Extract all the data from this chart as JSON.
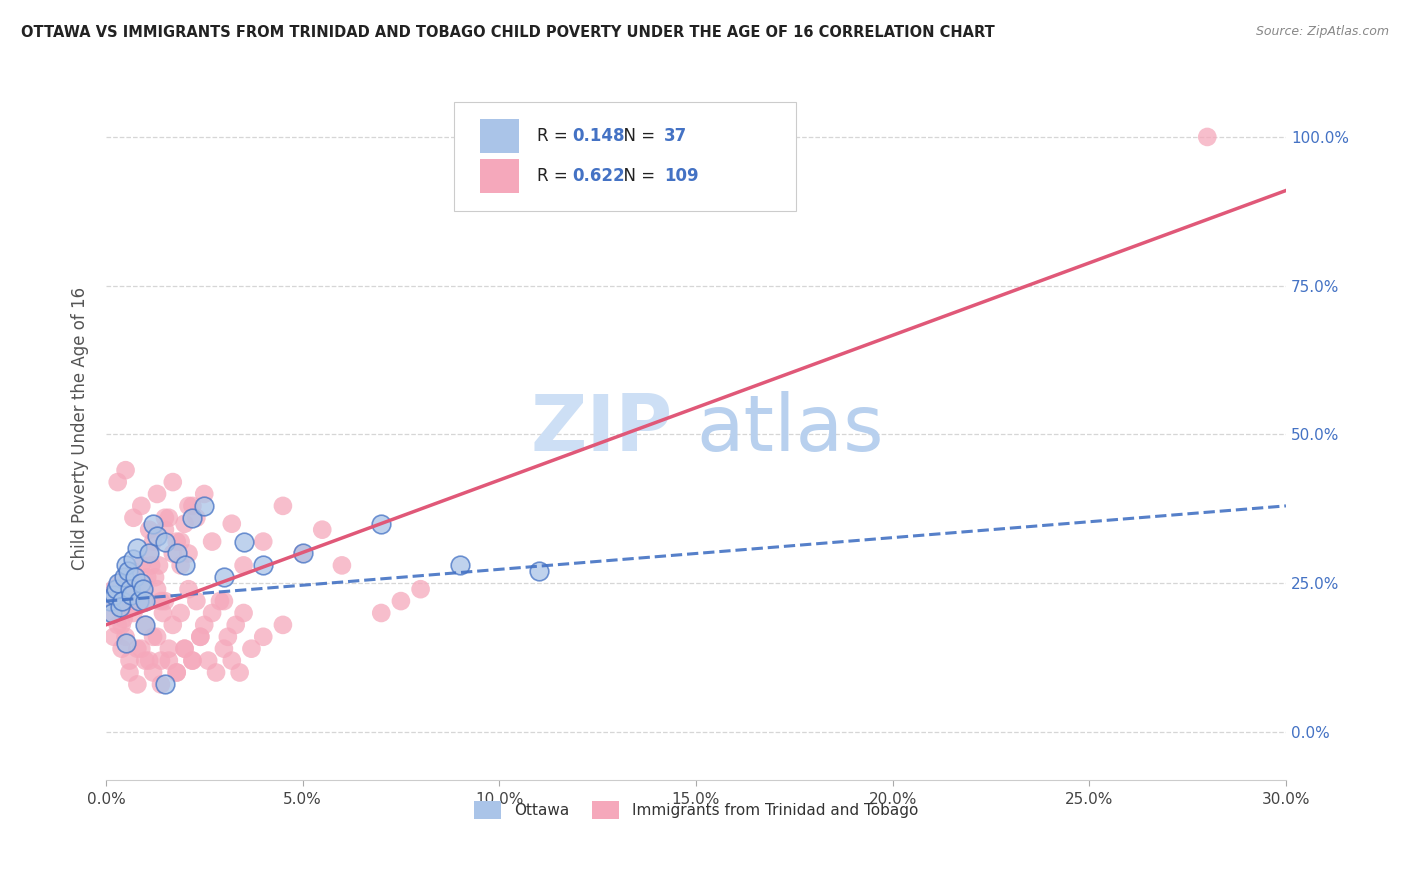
{
  "title": "OTTAWA VS IMMIGRANTS FROM TRINIDAD AND TOBAGO CHILD POVERTY UNDER THE AGE OF 16 CORRELATION CHART",
  "source": "Source: ZipAtlas.com",
  "xlabel_vals": [
    0.0,
    5.0,
    10.0,
    15.0,
    20.0,
    25.0,
    30.0
  ],
  "ylabel_vals_right": [
    0.0,
    25.0,
    50.0,
    75.0,
    100.0
  ],
  "ylabel_ticks_right": [
    "0.0%",
    "25.0%",
    "50.0%",
    "75.0%",
    "100.0%"
  ],
  "ylabel_label": "Child Poverty Under the Age of 16",
  "xmin": 0.0,
  "xmax": 30.0,
  "ymin": -8.0,
  "ymax": 110.0,
  "ottawa_R": 0.148,
  "ottawa_N": 37,
  "immigrants_R": 0.622,
  "immigrants_N": 109,
  "ottawa_color": "#aac4e8",
  "immigrants_color": "#f5a8bb",
  "ottawa_line_color": "#4472c4",
  "immigrants_line_color": "#e05878",
  "watermark_zip": "ZIP",
  "watermark_atlas": "atlas",
  "watermark_color": "#ccdff5",
  "grid_color": "#cccccc",
  "ottawa_line_x0": 0.0,
  "ottawa_line_y0": 22.0,
  "ottawa_line_x1": 30.0,
  "ottawa_line_y1": 38.0,
  "immigrants_line_x0": 0.0,
  "immigrants_line_y0": 18.0,
  "immigrants_line_x1": 30.0,
  "immigrants_line_y1": 91.0,
  "ottawa_scatter_x": [
    0.1,
    0.15,
    0.2,
    0.25,
    0.3,
    0.35,
    0.4,
    0.45,
    0.5,
    0.55,
    0.6,
    0.65,
    0.7,
    0.75,
    0.8,
    0.85,
    0.9,
    0.95,
    1.0,
    1.0,
    1.1,
    1.2,
    1.3,
    1.5,
    1.8,
    2.0,
    2.2,
    2.5,
    3.0,
    3.5,
    4.0,
    5.0,
    7.0,
    9.0,
    11.0,
    0.5,
    1.5
  ],
  "ottawa_scatter_y": [
    22,
    20,
    23,
    24,
    25,
    21,
    22,
    26,
    28,
    27,
    24,
    23,
    29,
    26,
    31,
    22,
    25,
    24,
    22,
    18,
    30,
    35,
    33,
    32,
    30,
    28,
    36,
    38,
    26,
    32,
    28,
    30,
    35,
    28,
    27,
    15,
    8
  ],
  "immigrants_scatter_x": [
    0.1,
    0.15,
    0.2,
    0.25,
    0.3,
    0.35,
    0.4,
    0.45,
    0.5,
    0.55,
    0.6,
    0.65,
    0.7,
    0.75,
    0.8,
    0.85,
    0.9,
    0.95,
    1.0,
    1.05,
    1.1,
    1.15,
    1.2,
    1.25,
    1.3,
    1.35,
    1.4,
    1.45,
    1.5,
    1.6,
    1.7,
    1.8,
    1.9,
    2.0,
    2.1,
    2.2,
    2.3,
    2.5,
    2.7,
    3.0,
    3.2,
    3.5,
    4.0,
    4.5,
    5.0,
    5.5,
    6.0,
    7.0,
    7.5,
    8.0,
    0.2,
    0.4,
    0.6,
    0.8,
    1.0,
    1.2,
    1.4,
    1.6,
    1.8,
    2.0,
    2.2,
    2.4,
    0.3,
    0.5,
    0.7,
    0.9,
    1.1,
    1.3,
    1.5,
    1.7,
    1.9,
    2.1,
    0.4,
    0.6,
    0.8,
    1.0,
    1.2,
    1.4,
    1.6,
    1.8,
    2.0,
    2.2,
    2.4,
    2.6,
    2.8,
    3.0,
    3.2,
    3.4,
    0.3,
    0.5,
    0.7,
    0.9,
    1.1,
    1.3,
    1.5,
    1.7,
    1.9,
    2.1,
    2.3,
    2.5,
    2.7,
    2.9,
    3.1,
    3.3,
    3.5,
    3.7,
    4.0,
    4.5,
    28.0
  ],
  "immigrants_scatter_y": [
    22,
    20,
    24,
    23,
    21,
    25,
    22,
    19,
    26,
    22,
    24,
    21,
    27,
    23,
    25,
    22,
    28,
    24,
    22,
    26,
    30,
    28,
    32,
    26,
    24,
    28,
    22,
    20,
    34,
    36,
    30,
    32,
    28,
    35,
    30,
    38,
    36,
    40,
    32,
    22,
    35,
    28,
    32,
    38,
    30,
    34,
    28,
    20,
    22,
    24,
    16,
    18,
    12,
    14,
    18,
    16,
    12,
    14,
    10,
    14,
    12,
    16,
    42,
    44,
    36,
    38,
    34,
    40,
    36,
    42,
    32,
    38,
    14,
    10,
    8,
    12,
    10,
    8,
    12,
    10,
    14,
    12,
    16,
    12,
    10,
    14,
    12,
    10,
    18,
    16,
    20,
    14,
    12,
    16,
    22,
    18,
    20,
    24,
    22,
    18,
    20,
    22,
    16,
    18,
    20,
    14,
    16,
    18,
    100
  ]
}
